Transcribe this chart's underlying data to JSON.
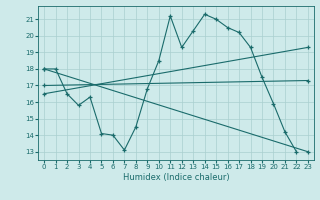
{
  "xlabel": "Humidex (Indice chaleur)",
  "bg_color": "#ceeaea",
  "grid_color": "#aacfcf",
  "line_color": "#1a6b6b",
  "xlim": [
    -0.5,
    23.5
  ],
  "ylim": [
    12.5,
    21.8
  ],
  "yticks": [
    13,
    14,
    15,
    16,
    17,
    18,
    19,
    20,
    21
  ],
  "xticks": [
    0,
    1,
    2,
    3,
    4,
    5,
    6,
    7,
    8,
    9,
    10,
    11,
    12,
    13,
    14,
    15,
    16,
    17,
    18,
    19,
    20,
    21,
    22,
    23
  ],
  "series": [
    {
      "x": [
        0,
        1,
        2,
        3,
        4,
        5,
        6,
        7,
        8,
        9,
        10,
        11,
        12,
        13,
        14,
        15,
        16,
        17,
        18,
        19,
        20,
        21,
        22
      ],
      "y": [
        18.0,
        18.0,
        16.5,
        15.8,
        16.3,
        14.1,
        14.0,
        13.1,
        14.5,
        16.8,
        18.5,
        21.2,
        19.3,
        20.3,
        21.3,
        21.0,
        20.5,
        20.2,
        19.3,
        17.5,
        15.9,
        14.2,
        13.0
      ]
    },
    {
      "x": [
        0,
        23
      ],
      "y": [
        17.0,
        17.3
      ]
    },
    {
      "x": [
        0,
        23
      ],
      "y": [
        18.0,
        13.0
      ]
    },
    {
      "x": [
        0,
        23
      ],
      "y": [
        16.5,
        19.3
      ]
    }
  ]
}
